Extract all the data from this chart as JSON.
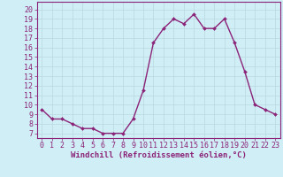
{
  "x": [
    0,
    1,
    2,
    3,
    4,
    5,
    6,
    7,
    8,
    9,
    10,
    11,
    12,
    13,
    14,
    15,
    16,
    17,
    18,
    19,
    20,
    21,
    22,
    23
  ],
  "y": [
    9.5,
    8.5,
    8.5,
    8.0,
    7.5,
    7.5,
    7.0,
    7.0,
    7.0,
    8.5,
    11.5,
    16.5,
    18.0,
    19.0,
    18.5,
    19.5,
    18.0,
    18.0,
    19.0,
    16.5,
    13.5,
    10.0,
    9.5,
    9.0
  ],
  "line_color": "#8b2378",
  "marker": "D",
  "marker_size": 2.0,
  "bg_color": "#d0eef5",
  "grid_color": "#b8d8e0",
  "xlabel": "Windchill (Refroidissement éolien,°C)",
  "ylabel_ticks": [
    7,
    8,
    9,
    10,
    11,
    12,
    13,
    14,
    15,
    16,
    17,
    18,
    19,
    20
  ],
  "ylim": [
    6.5,
    20.8
  ],
  "xlim": [
    -0.5,
    23.5
  ],
  "xlabel_fontsize": 6.5,
  "tick_fontsize": 6.0,
  "tick_color": "#8b2378",
  "label_color": "#8b2378",
  "spine_color": "#8b2378",
  "line_width": 1.0
}
